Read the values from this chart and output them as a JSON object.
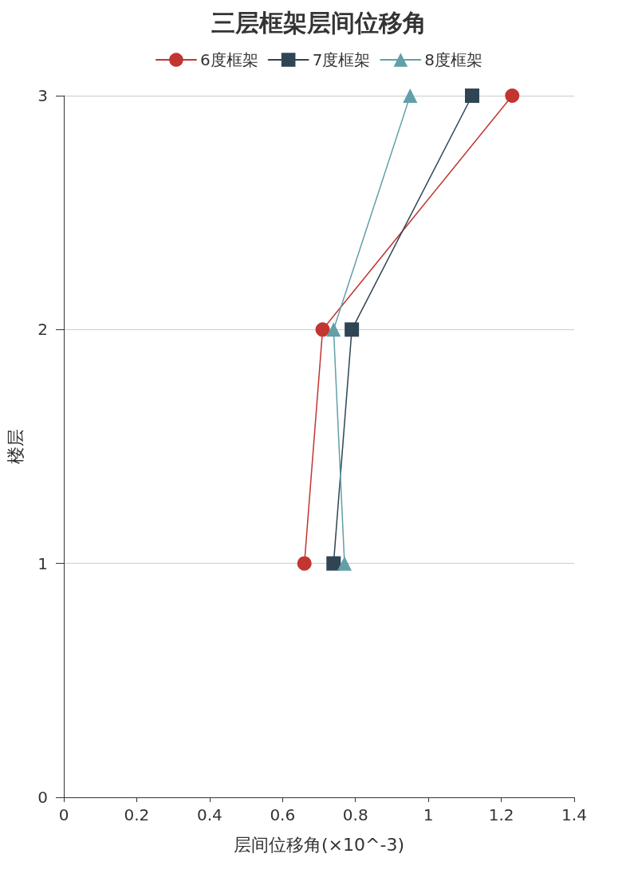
{
  "chart_data": {
    "type": "line",
    "title": "三层框架层间位移角",
    "xlabel": "层间位移角(×10^-3)",
    "ylabel": "楼层",
    "series": [
      {
        "name": "6度框架",
        "color": "#c23531",
        "marker": "circle",
        "x": [
          0.66,
          0.71,
          1.23
        ],
        "values": [
          1,
          2,
          3
        ]
      },
      {
        "name": "7度框架",
        "color": "#2f4554",
        "marker": "square",
        "x": [
          0.74,
          0.79,
          1.12
        ],
        "values": [
          1,
          2,
          3
        ]
      },
      {
        "name": "8度框架",
        "color": "#61a0a8",
        "marker": "triangle",
        "x": [
          0.77,
          0.74,
          0.95
        ],
        "values": [
          1,
          2,
          3
        ]
      }
    ],
    "xlim": [
      0,
      1.4
    ],
    "xticks": [
      0,
      0.2,
      0.4,
      0.6,
      0.8,
      1,
      1.2,
      1.4
    ],
    "ylim": [
      0,
      3
    ],
    "yticks": [
      0,
      1,
      2,
      3
    ],
    "grid": "y",
    "legend": "top",
    "line_style": "solid"
  }
}
